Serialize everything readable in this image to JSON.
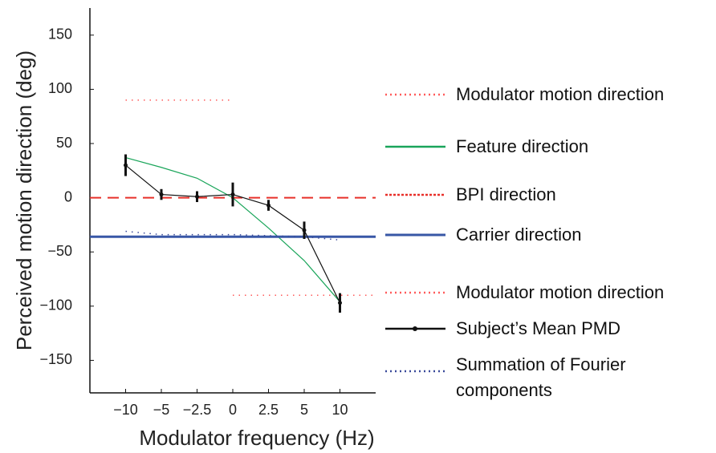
{
  "chart_data": {
    "type": "line",
    "xlabel": "Modulator frequency (Hz)",
    "ylabel": "Perceived motion direction (deg)",
    "categories": [
      "−10",
      "−5",
      "−2.5",
      "0",
      "2.5",
      "5",
      "10"
    ],
    "ylim": [
      -180,
      175
    ],
    "yticks": [
      {
        "value": -150,
        "label": "−150"
      },
      {
        "value": -100,
        "label": "−100"
      },
      {
        "value": -50,
        "label": "−50"
      },
      0,
      50,
      100,
      150
    ],
    "series": [
      {
        "name": "Modulator motion direction",
        "color": "#ff5a5a",
        "linestyle": "dotted",
        "values": [
          90,
          90,
          90,
          90,
          null,
          null,
          null
        ]
      },
      {
        "name": "Feature direction",
        "color": "#1aa55a",
        "linestyle": "solid",
        "values": [
          37,
          28,
          18,
          0,
          -28,
          -58,
          -96
        ]
      },
      {
        "name": "BPI direction",
        "color": "#e8302a",
        "linestyle": "dashed",
        "values": [
          0,
          0,
          0,
          0,
          0,
          0,
          0
        ]
      },
      {
        "name": "Carrier direction",
        "color": "#3857a6",
        "linestyle": "thick",
        "values": [
          -36,
          -36,
          -36,
          -36,
          -36,
          -36,
          -36
        ]
      },
      {
        "name": "Modulator motion direction",
        "color": "#ff5a5a",
        "linestyle": "dotted",
        "values": [
          null,
          null,
          null,
          -90,
          -90,
          -90,
          -90
        ]
      },
      {
        "name": "Subject’s Mean PMD",
        "color": "#111111",
        "linestyle": "solid",
        "marker": "dot",
        "values": [
          30,
          3,
          1,
          3,
          -7,
          -30,
          -97
        ],
        "errors": [
          10,
          5,
          5,
          11,
          5,
          8,
          9
        ]
      },
      {
        "name": "Summation of Fourier components",
        "color": "#3a4a9a",
        "linestyle": "dotted",
        "values": [
          -31,
          -34,
          -34,
          -34,
          -35,
          -36,
          -39
        ]
      }
    ]
  }
}
